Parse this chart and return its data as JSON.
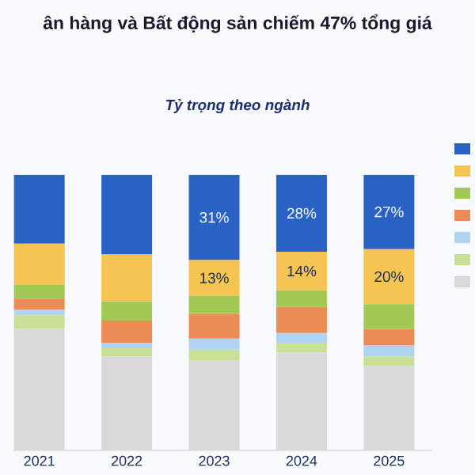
{
  "chart_data": {
    "type": "bar",
    "stacked": true,
    "title": "ân hàng và Bất động sản chiếm 47% tổng giá",
    "subtitle": "Tỷ trọng theo ngành",
    "categories": [
      "2021",
      "2022",
      "2023",
      "2024",
      "2025"
    ],
    "series": [
      {
        "color": "#d9d9d9",
        "values": [
          44,
          34,
          32.5,
          35.5,
          30.5
        ]
      },
      {
        "color": "#c8e096",
        "values": [
          5,
          3,
          4,
          3.5,
          3.5
        ]
      },
      {
        "color": "#aed4f2",
        "values": [
          2,
          2,
          4,
          3.5,
          4
        ]
      },
      {
        "color": "#ec8b55",
        "values": [
          4,
          8,
          9,
          9.5,
          6
        ]
      },
      {
        "color": "#a3c853",
        "values": [
          5,
          7,
          6.5,
          6,
          9
        ]
      },
      {
        "color": "#f5c453",
        "values": [
          15,
          17,
          13,
          14,
          20
        ],
        "value_labels": [
          null,
          null,
          "13%",
          "14%",
          "20%"
        ]
      },
      {
        "color": "#2a62c4",
        "values": [
          25,
          29,
          31,
          28,
          27
        ],
        "value_labels": [
          null,
          null,
          "31%",
          "28%",
          "27%"
        ]
      }
    ],
    "tick_labels": "x"
  }
}
